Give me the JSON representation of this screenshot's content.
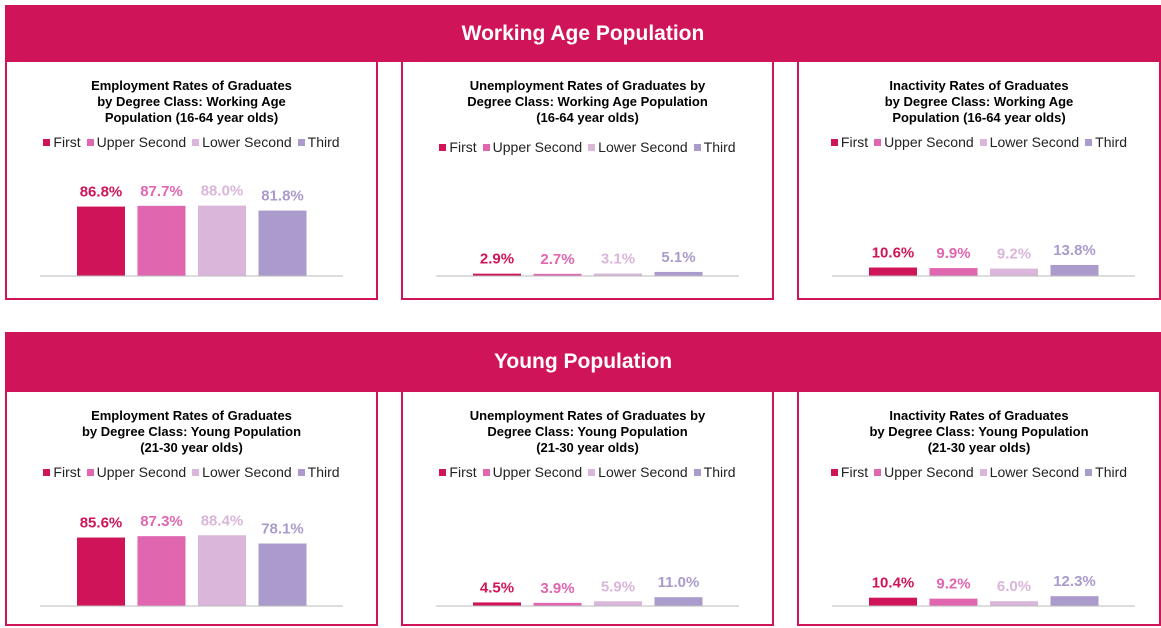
{
  "sections": [
    {
      "title": "Working Age Population"
    },
    {
      "title": "Young Population"
    }
  ],
  "chart_data": [
    {
      "type": "bar",
      "title": "Employment Rates of Graduates\nby Degree Class: Working Age\nPopulation (16-64 year olds)",
      "categories": [
        "First",
        "Upper Second",
        "Lower Second",
        "Third"
      ],
      "values": [
        86.8,
        87.7,
        88.0,
        81.8
      ],
      "value_labels": [
        "86.8%",
        "87.7%",
        "88.0%",
        "81.8%"
      ],
      "colors": [
        "#d0145a",
        "#e066b0",
        "#d9b6da",
        "#ab9bcc"
      ],
      "ylim": [
        0,
        100
      ]
    },
    {
      "type": "bar",
      "title": "Unemployment Rates of Graduates by\nDegree Class: Working Age Population\n(16-64 year olds)",
      "categories": [
        "First",
        "Upper Second",
        "Lower Second",
        "Third"
      ],
      "values": [
        2.9,
        2.7,
        3.1,
        5.1
      ],
      "value_labels": [
        "2.9%",
        "2.7%",
        "3.1%",
        "5.1%"
      ],
      "colors": [
        "#d0145a",
        "#e066b0",
        "#d9b6da",
        "#ab9bcc"
      ],
      "ylim": [
        0,
        100
      ]
    },
    {
      "type": "bar",
      "title": "Inactivity Rates of Graduates\nby Degree Class: Working Age\nPopulation (16-64 year olds)",
      "categories": [
        "First",
        "Upper Second",
        "Lower Second",
        "Third"
      ],
      "values": [
        10.6,
        9.9,
        9.2,
        13.8
      ],
      "value_labels": [
        "10.6%",
        "9.9%",
        "9.2%",
        "13.8%"
      ],
      "colors": [
        "#d0145a",
        "#e066b0",
        "#d9b6da",
        "#ab9bcc"
      ],
      "ylim": [
        0,
        100
      ]
    },
    {
      "type": "bar",
      "title": "Employment Rates of Graduates\nby Degree Class: Young Population\n(21-30 year olds)",
      "categories": [
        "First",
        "Upper Second",
        "Lower Second",
        "Third"
      ],
      "values": [
        85.6,
        87.3,
        88.4,
        78.1
      ],
      "value_labels": [
        "85.6%",
        "87.3%",
        "88.4%",
        "78.1%"
      ],
      "colors": [
        "#d0145a",
        "#e066b0",
        "#d9b6da",
        "#ab9bcc"
      ],
      "ylim": [
        0,
        100
      ]
    },
    {
      "type": "bar",
      "title": "Unemployment Rates of Graduates by\nDegree Class: Young Population\n(21-30 year olds)",
      "categories": [
        "First",
        "Upper Second",
        "Lower Second",
        "Third"
      ],
      "values": [
        4.5,
        3.9,
        5.9,
        11.0
      ],
      "value_labels": [
        "4.5%",
        "3.9%",
        "5.9%",
        "11.0%"
      ],
      "colors": [
        "#d0145a",
        "#e066b0",
        "#d9b6da",
        "#ab9bcc"
      ],
      "ylim": [
        0,
        100
      ]
    },
    {
      "type": "bar",
      "title": "Inactivity Rates of Graduates\nby Degree Class: Young Population\n(21-30 year olds)",
      "categories": [
        "First",
        "Upper Second",
        "Lower Second",
        "Third"
      ],
      "values": [
        10.4,
        9.2,
        6.0,
        12.3
      ],
      "value_labels": [
        "10.4%",
        "9.2%",
        "6.0%",
        "12.3%"
      ],
      "colors": [
        "#d0145a",
        "#e066b0",
        "#d9b6da",
        "#ab9bcc"
      ],
      "ylim": [
        0,
        100
      ]
    }
  ]
}
